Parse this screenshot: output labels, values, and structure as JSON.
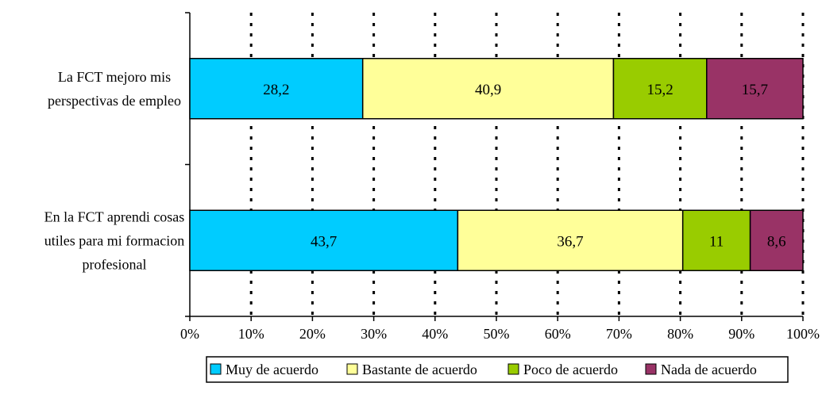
{
  "chart_data": {
    "type": "bar",
    "orientation": "horizontal",
    "stacked": "percent",
    "title": "",
    "xlabel": "",
    "ylabel": "",
    "xlim": [
      0,
      100
    ],
    "x_ticks": [
      "0%",
      "10%",
      "20%",
      "30%",
      "40%",
      "50%",
      "60%",
      "70%",
      "80%",
      "90%",
      "100%"
    ],
    "grid": "vertical dotted",
    "legend_position": "bottom",
    "categories": [
      [
        "La FCT mejoro mis",
        "perspectivas de empleo"
      ],
      [
        "En la FCT aprendi cosas",
        "utiles para mi formacion",
        "profesional"
      ]
    ],
    "series": [
      {
        "name": "Muy de acuerdo",
        "color": "#00ccff",
        "values": [
          28.2,
          43.7
        ],
        "labels": [
          "28,2",
          "43,7"
        ]
      },
      {
        "name": "Bastante de acuerdo",
        "color": "#ffff99",
        "values": [
          40.9,
          36.7
        ],
        "labels": [
          "40,9",
          "36,7"
        ]
      },
      {
        "name": "Poco de acuerdo",
        "color": "#99cc00",
        "values": [
          15.2,
          11
        ],
        "labels": [
          "15,2",
          "11"
        ]
      },
      {
        "name": "Nada de acuerdo",
        "color": "#993366",
        "values": [
          15.7,
          8.6
        ],
        "labels": [
          "15,7",
          "8,6"
        ]
      }
    ]
  }
}
